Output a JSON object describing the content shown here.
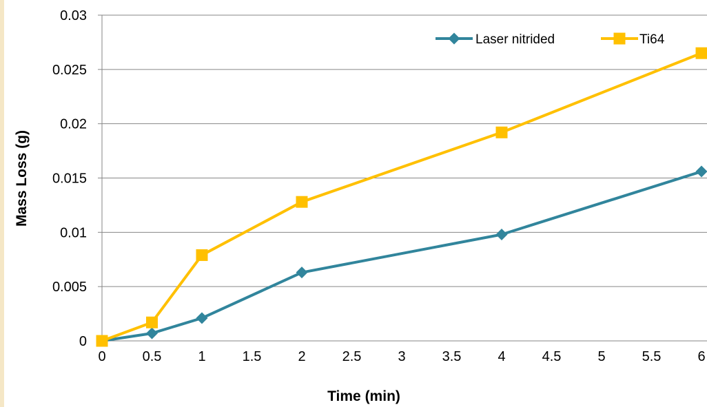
{
  "chart_data": {
    "type": "line",
    "title": "",
    "xlabel": "Time (min)",
    "ylabel": "Mass Loss (g)",
    "xlim": [
      0,
      6
    ],
    "ylim": [
      0,
      0.03
    ],
    "x_ticks": [
      "0",
      "0.5",
      "1",
      "1.5",
      "2",
      "2.5",
      "3",
      "3.5",
      "4",
      "4.5",
      "5",
      "5.5",
      "6"
    ],
    "y_ticks": [
      "0",
      "0.005",
      "0.01",
      "0.015",
      "0.02",
      "0.025",
      "0.03"
    ],
    "grid": "horizontal",
    "legend_position": "top-right",
    "series": [
      {
        "name": "Laser nitrided",
        "color": "#31859c",
        "marker": "diamond",
        "x": [
          0,
          0.5,
          1,
          2,
          4,
          6
        ],
        "y": [
          0,
          0.0007,
          0.0021,
          0.0063,
          0.0098,
          0.0156
        ]
      },
      {
        "name": "Ti64",
        "color": "#ffc000",
        "marker": "square",
        "x": [
          0,
          0.5,
          1,
          2,
          4,
          6
        ],
        "y": [
          0,
          0.0017,
          0.0079,
          0.0128,
          0.0192,
          0.0265
        ]
      }
    ]
  }
}
